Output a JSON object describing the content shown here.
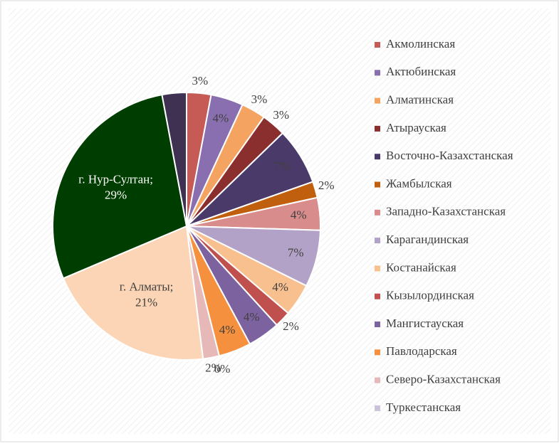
{
  "chart_data": {
    "type": "pie",
    "categories": [
      "Акмолинская",
      "Актюбинская",
      "Алматинская",
      "Атырауская",
      "Восточно-Казахстанская",
      "Жамбылская",
      "Западно-Казахстанская",
      "Карагандинская",
      "Костанайская",
      "Кызылординская",
      "Мангистауская",
      "Павлодарская",
      "Северо-Казахстанская",
      "Туркестанская",
      null,
      null,
      null
    ],
    "values": [
      3,
      4,
      3,
      3,
      7,
      2,
      4,
      7,
      4,
      2,
      4,
      4,
      2,
      0,
      21,
      29,
      3
    ],
    "value_labels": [
      "3%",
      "4%",
      "3%",
      "3%",
      "7%",
      "2%",
      "4%",
      "7%",
      "4%",
      "2%",
      "4%",
      "4%",
      "2%",
      "0%",
      [
        "г. Алматы;",
        "21%"
      ],
      [
        "г. Нур-Султан;",
        "29%"
      ],
      null
    ],
    "colors": [
      "#c65a55",
      "#8a6fb0",
      "#f4a460",
      "#8b2e2e",
      "#4a3a6a",
      "#c0600e",
      "#d98c8c",
      "#b3a2c7",
      "#f9c08f",
      "#c0504d",
      "#7d62a0",
      "#f5903e",
      "#e6b9b8",
      "#ccc1da",
      "#fbd5b5",
      "#003d00",
      "#3f3151"
    ],
    "legend": "right"
  }
}
